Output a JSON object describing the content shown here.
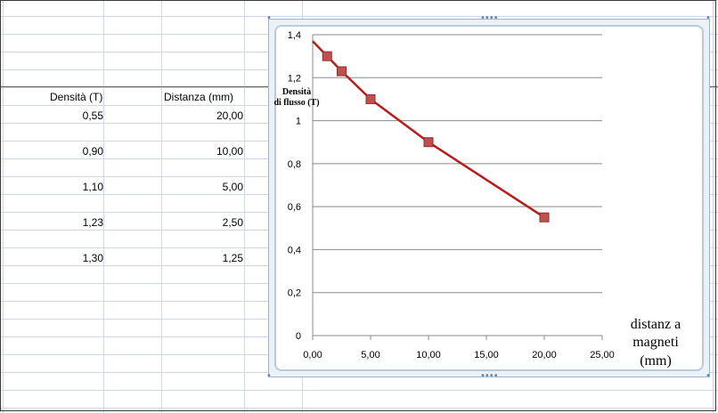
{
  "sheet": {
    "header_density": "Densità (T)",
    "header_distance": "Distanza (mm)",
    "rows": [
      {
        "density": "0,55",
        "distance": "20,00"
      },
      {
        "density": "0,90",
        "distance": "10,00"
      },
      {
        "density": "1,10",
        "distance": "5,00"
      },
      {
        "density": "1,23",
        "distance": "2,50"
      },
      {
        "density": "1,30",
        "distance": "1,25"
      }
    ]
  },
  "chart_data": {
    "type": "scatter",
    "title": "",
    "ylabel_line1": "Densità",
    "ylabel_line2": "di flusso (T)",
    "xlabel_line1": "distanz a",
    "xlabel_line2": "magneti",
    "xlabel_line3": "(mm)",
    "x": [
      1.25,
      2.5,
      5,
      10,
      20
    ],
    "y": [
      1.3,
      1.23,
      1.1,
      0.9,
      0.55
    ],
    "trendline": {
      "x": [
        0,
        20
      ],
      "y": [
        1.37,
        0.55
      ]
    },
    "xlim": [
      0,
      25
    ],
    "ylim": [
      0,
      1.4
    ],
    "x_ticks": [
      "0,00",
      "5,00",
      "10,00",
      "15,00",
      "20,00",
      "25,00"
    ],
    "y_ticks": [
      "0",
      "0,2",
      "0,4",
      "0,6",
      "0,8",
      "1",
      "1,2",
      "1,4"
    ],
    "grid": "horizontal",
    "marker_color": "#c0504d",
    "line_color": "#b81c1c"
  }
}
